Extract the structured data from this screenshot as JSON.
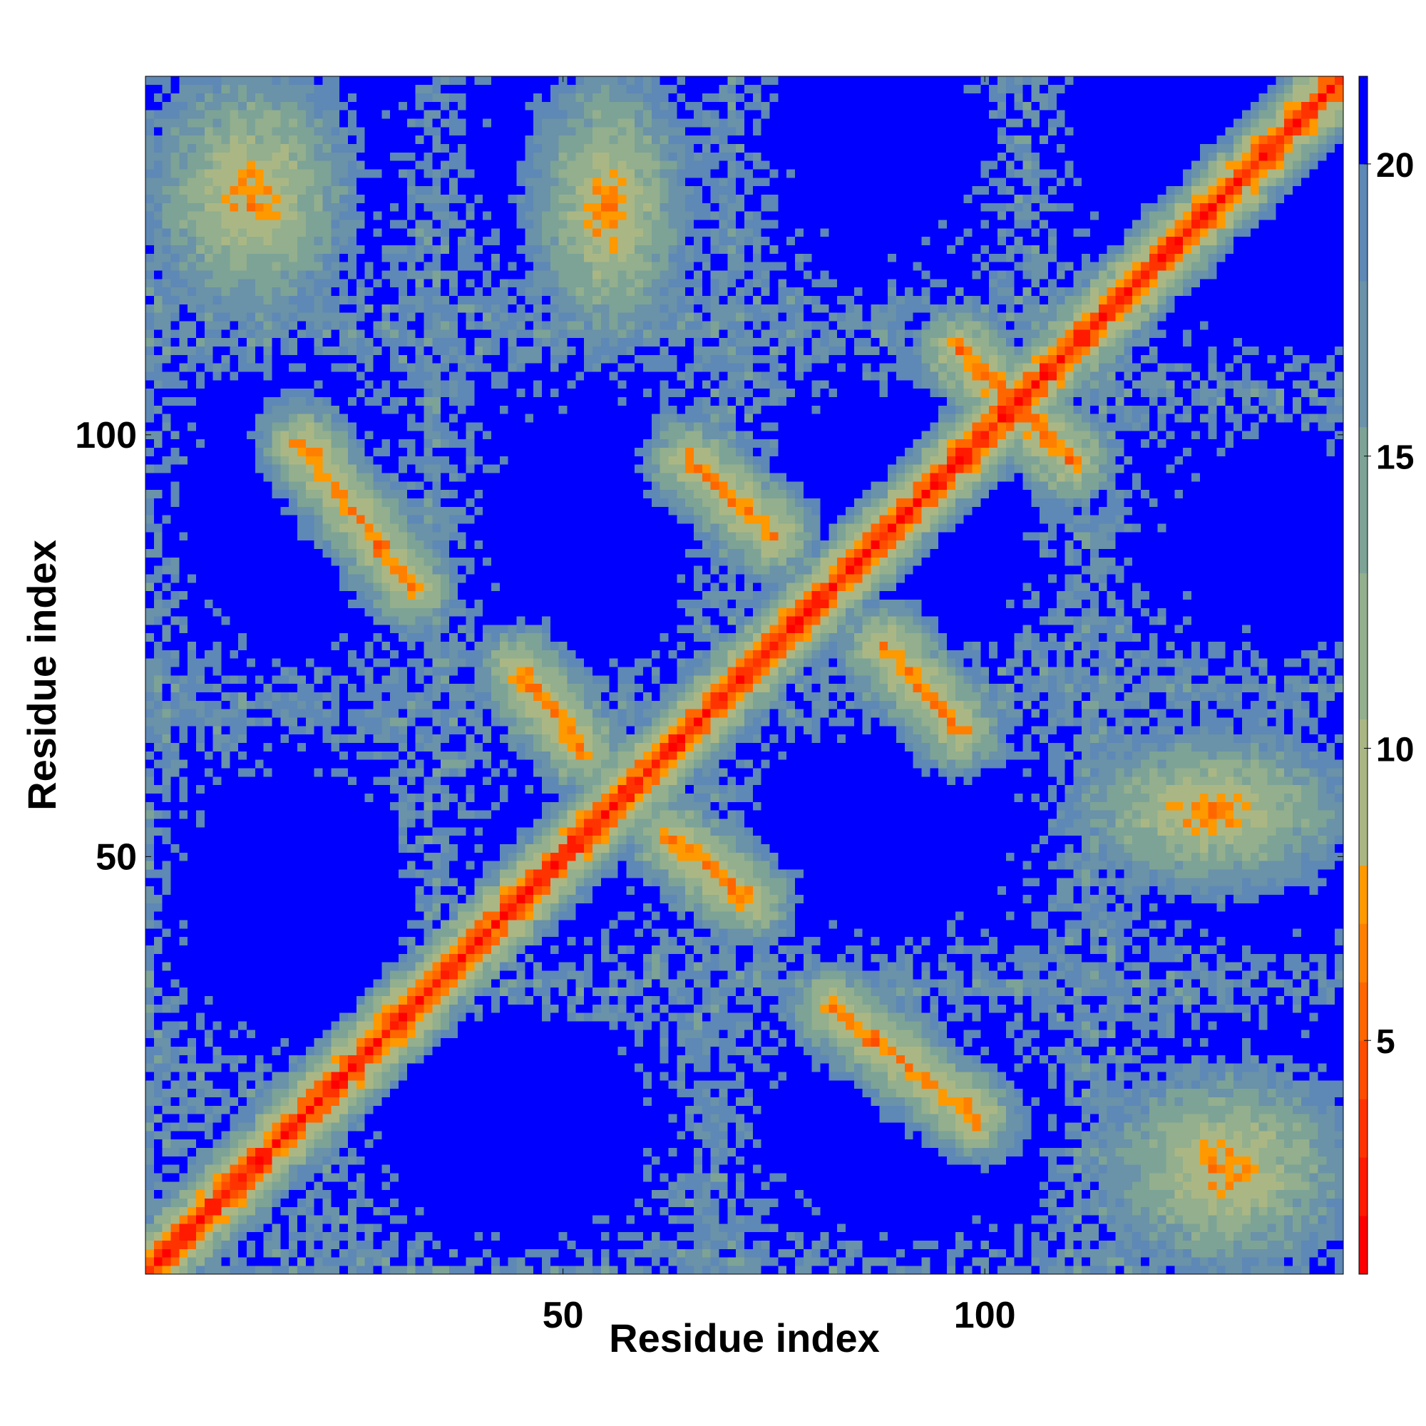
{
  "chart_data": {
    "type": "heatmap",
    "title": "",
    "xlabel": "Residue index",
    "ylabel": "Residue index",
    "n_residues": 142,
    "xlim": [
      1,
      142
    ],
    "ylim": [
      1,
      142
    ],
    "x_ticks": [
      50,
      100
    ],
    "y_ticks": [
      50,
      100
    ],
    "x_tick_labels": [
      "50",
      "100"
    ],
    "y_tick_labels": [
      "50",
      "100"
    ],
    "colorbar": {
      "ticks": [
        5,
        10,
        15,
        20
      ],
      "tick_labels": [
        "5",
        "10",
        "15",
        "20"
      ],
      "range": [
        1,
        21.5
      ],
      "saturated_above": 20,
      "saturated_color": "#0000ff",
      "bands": [
        {
          "from": 1.0,
          "to": 2.0,
          "color": "#ff0000"
        },
        {
          "from": 2.0,
          "to": 3.0,
          "color": "#ff1a00"
        },
        {
          "from": 3.0,
          "to": 4.0,
          "color": "#ff3300"
        },
        {
          "from": 4.0,
          "to": 5.0,
          "color": "#ff4d00"
        },
        {
          "from": 5.0,
          "to": 6.0,
          "color": "#ff6600"
        },
        {
          "from": 6.0,
          "to": 7.0,
          "color": "#ff8000"
        },
        {
          "from": 7.0,
          "to": 8.0,
          "color": "#ff9900"
        },
        {
          "from": 8.0,
          "to": 10.5,
          "color": "#aab784"
        },
        {
          "from": 10.5,
          "to": 13.0,
          "color": "#93af8d"
        },
        {
          "from": 13.0,
          "to": 15.5,
          "color": "#7da397"
        },
        {
          "from": 15.5,
          "to": 18.0,
          "color": "#6a92a8"
        },
        {
          "from": 18.0,
          "to": 20.0,
          "color": "#5e88b5"
        },
        {
          "from": 20.0,
          "to": 21.5,
          "color": "#0000ff"
        }
      ]
    },
    "structure": {
      "diagonal_band_width": 5,
      "contact_blocks": [
        {
          "x": [
            2,
            24
          ],
          "y": [
            115,
            142
          ],
          "min_distance": 6
        },
        {
          "x": [
            48,
            62
          ],
          "y": [
            112,
            140
          ],
          "min_distance": 6
        },
        {
          "x": [
            115,
            142
          ],
          "y": [
            2,
            24
          ],
          "min_distance": 6
        },
        {
          "x": [
            112,
            140
          ],
          "y": [
            48,
            62
          ],
          "min_distance": 6
        },
        {
          "x": [
            112,
            142
          ],
          "y": [
            47,
            64
          ],
          "min_distance": 6
        },
        {
          "x": [
            47,
            64
          ],
          "y": [
            112,
            142
          ],
          "min_distance": 6
        }
      ],
      "contact_lines": [
        {
          "from": [
            19,
            99
          ],
          "to": [
            32,
            82
          ],
          "distance": 6
        },
        {
          "from": [
            82,
            32
          ],
          "to": [
            99,
            19
          ],
          "distance": 6
        },
        {
          "from": [
            65,
            97
          ],
          "to": [
            75,
            88
          ],
          "distance": 6
        },
        {
          "from": [
            88,
            75
          ],
          "to": [
            97,
            65
          ],
          "distance": 6
        },
        {
          "from": [
            45,
            72
          ],
          "to": [
            52,
            63
          ],
          "distance": 6
        },
        {
          "from": [
            63,
            52
          ],
          "to": [
            72,
            45
          ],
          "distance": 6
        },
        {
          "from": [
            97,
            110
          ],
          "to": [
            110,
            97
          ],
          "distance": 6
        }
      ]
    }
  }
}
